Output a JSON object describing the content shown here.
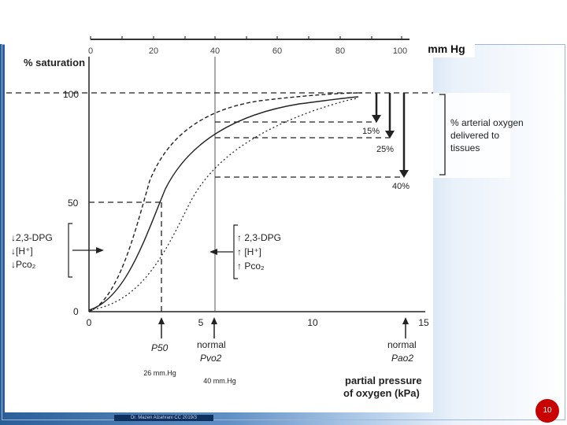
{
  "top_axis": {
    "ticks": [
      "0",
      "20",
      "40",
      "60",
      "80",
      "100"
    ],
    "unit": "mm Hg"
  },
  "y_axis": {
    "label": "% saturation",
    "ticks": [
      "100",
      "50",
      "0"
    ]
  },
  "x_axis": {
    "ticks": [
      "0",
      "5",
      "10",
      "15"
    ],
    "label_line1": "partial pressure",
    "label_line2": "of oxygen (kPa)"
  },
  "left_shift": {
    "line1": "↓2,3-DPG",
    "line2": "↓[H⁺]",
    "line3": "↓Pco₂"
  },
  "right_shift": {
    "line1": "↑ 2,3-DPG",
    "line2": "↑ [H⁺]",
    "line3": "↑ Pco₂"
  },
  "delivery": {
    "pct1": "15%",
    "pct2": "25%",
    "pct3": "40%",
    "label_line1": "% arterial oxygen",
    "label_line2": "delivered to",
    "label_line3": "tissues"
  },
  "markers": {
    "p50": "P50",
    "normal_pvo2_line1": "normal",
    "normal_pvo2_line2": "Pvo2",
    "normal_pao2_line1": "normal",
    "normal_pao2_line2": "Pao2"
  },
  "annotations": {
    "p50_mmhg": "26 mm.Hg",
    "pvo2_mmhg": "40 mm.Hg"
  },
  "footer": {
    "text": "Dr. Mazen Alzahrani CC 2019/3"
  },
  "page_number": "10",
  "colors": {
    "background": "#1e4f86",
    "accent": "#c90000",
    "plot_bg": "#ffffff"
  }
}
